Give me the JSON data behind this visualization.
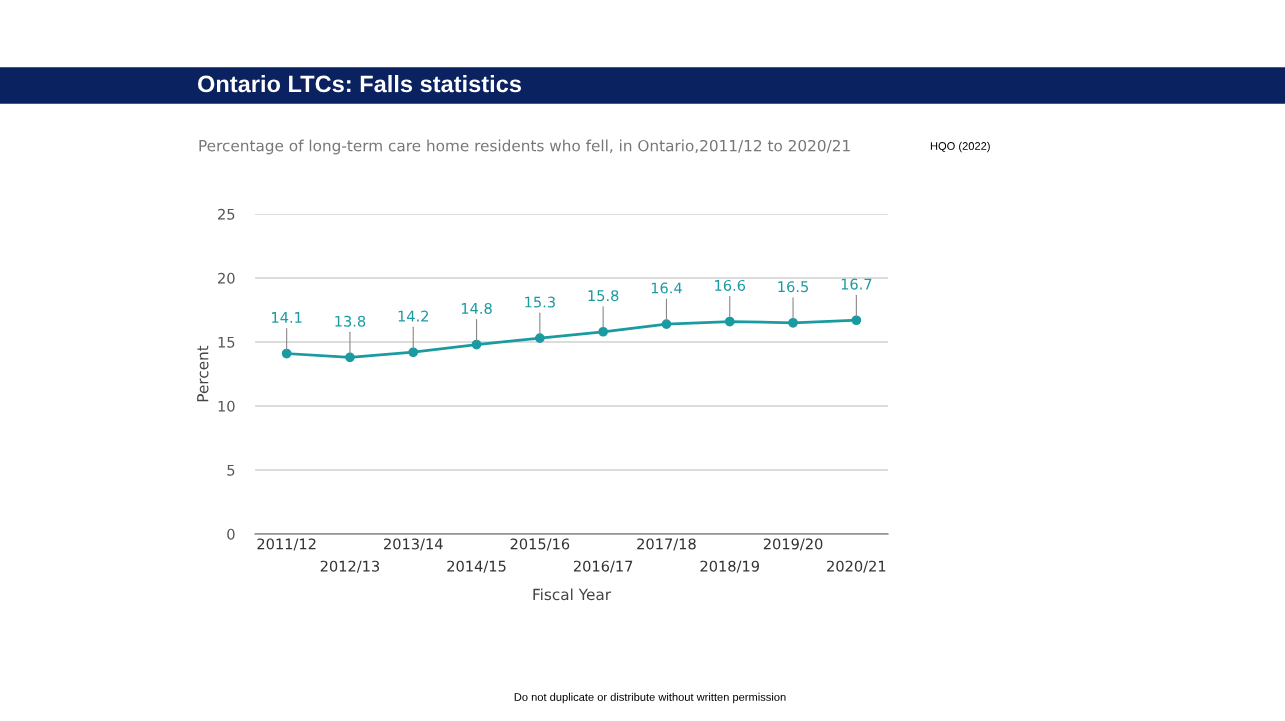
{
  "chart_data": {
    "type": "line",
    "title": "Ontario LTCs: Falls statistics",
    "subtitle": "Percentage of long-term care home residents who fell, in Ontario,2011/12 to 2020/21",
    "xlabel": "Fiscal Year",
    "ylabel": "Percent",
    "categories": [
      "2011/12",
      "2012/13",
      "2013/14",
      "2014/15",
      "2015/16",
      "2016/17",
      "2017/18",
      "2018/19",
      "2019/20",
      "2020/21"
    ],
    "series": [
      {
        "color": "#1a9ba1",
        "values": [
          14.1,
          13.8,
          14.2,
          14.8,
          15.3,
          15.8,
          16.4,
          16.6,
          16.5,
          16.7
        ]
      }
    ],
    "ylim": [
      0,
      25
    ],
    "yticks": [
      0,
      5,
      10,
      15,
      20,
      25
    ],
    "grid": "y",
    "marker": "circle",
    "line_style": "solid",
    "data_labels": true,
    "legend": false,
    "annotations": [
      "HQO (2022)",
      "Do not duplicate or distribute without written permission"
    ]
  }
}
